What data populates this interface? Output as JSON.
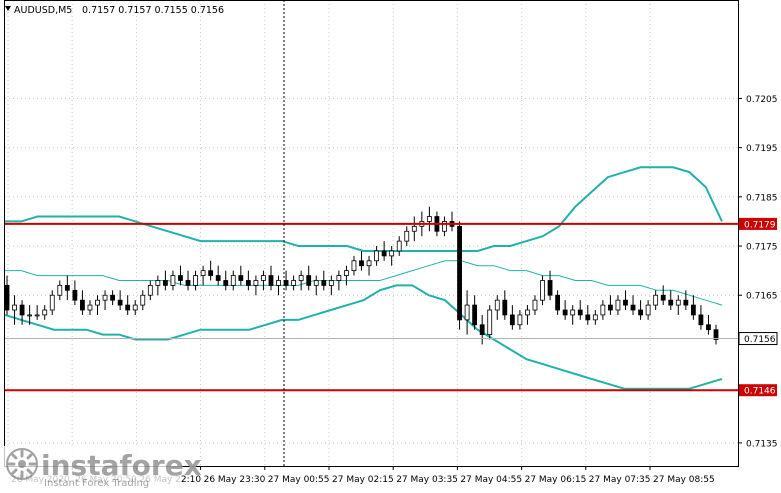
{
  "header": {
    "symbol": "AUDUSD,M5",
    "ohlc": "0.7157 0.7157 0.7155 0.7156"
  },
  "watermark": {
    "brand": "instaforex",
    "tagline": "Instant Forex Trading"
  },
  "colors": {
    "background": "#ffffff",
    "grid": "#c8c8c8",
    "candle": "#000000",
    "band": "#20b2aa",
    "level": "#cc0000",
    "axis": "#000000"
  },
  "chart_data": {
    "type": "candlestick",
    "title": "AUDUSD,M5",
    "ylim": [
      0.71303,
      0.7225
    ],
    "grid": true,
    "y_ticks": [
      "0.7205",
      "0.7195",
      "0.7185",
      "0.7175",
      "0.7165",
      "0.7135"
    ],
    "x_ticks": [
      "26 May 2020",
      "26 May 20:50",
      "26 May 22:10",
      "26 May 23:30",
      "27 May 00:55",
      "27 May 02:15",
      "27 May 03:35",
      "27 May 04:55",
      "27 May 06:15",
      "27 May 07:35",
      "27 May 08:55"
    ],
    "levels": [
      {
        "label": "0.7179",
        "value": 0.71795
      },
      {
        "label": "0.7146",
        "value": 0.71457
      }
    ],
    "current_price": {
      "label": "0.7156",
      "value": 0.71562
    },
    "candles": [
      [
        0.7167,
        0.7169,
        0.7161,
        0.7162
      ],
      [
        0.7162,
        0.7165,
        0.7159,
        0.7163
      ],
      [
        0.7163,
        0.7164,
        0.7159,
        0.7161
      ],
      [
        0.7161,
        0.7163,
        0.7159,
        0.7161
      ],
      [
        0.7161,
        0.7163,
        0.716,
        0.7161
      ],
      [
        0.7161,
        0.7163,
        0.716,
        0.7162
      ],
      [
        0.7162,
        0.7166,
        0.7161,
        0.7165
      ],
      [
        0.7165,
        0.7168,
        0.7164,
        0.7167
      ],
      [
        0.7167,
        0.7169,
        0.7164,
        0.7166
      ],
      [
        0.7166,
        0.7168,
        0.7163,
        0.7164
      ],
      [
        0.7164,
        0.7166,
        0.7161,
        0.7162
      ],
      [
        0.7162,
        0.7164,
        0.7161,
        0.7163
      ],
      [
        0.7163,
        0.7165,
        0.7161,
        0.7164
      ],
      [
        0.7164,
        0.7166,
        0.7162,
        0.7165
      ],
      [
        0.7165,
        0.7166,
        0.7163,
        0.7164
      ],
      [
        0.7164,
        0.7166,
        0.7162,
        0.7163
      ],
      [
        0.7163,
        0.7165,
        0.7161,
        0.7162
      ],
      [
        0.7162,
        0.7164,
        0.7161,
        0.7163
      ],
      [
        0.7163,
        0.7166,
        0.7162,
        0.7165
      ],
      [
        0.7165,
        0.7168,
        0.7164,
        0.7167
      ],
      [
        0.7167,
        0.7169,
        0.7165,
        0.7168
      ],
      [
        0.7168,
        0.717,
        0.7166,
        0.7167
      ],
      [
        0.7167,
        0.717,
        0.7166,
        0.7169
      ],
      [
        0.7169,
        0.7171,
        0.7167,
        0.7168
      ],
      [
        0.7168,
        0.717,
        0.7166,
        0.7167
      ],
      [
        0.7167,
        0.717,
        0.7166,
        0.7169
      ],
      [
        0.7169,
        0.7171,
        0.7167,
        0.717
      ],
      [
        0.717,
        0.7172,
        0.7168,
        0.7169
      ],
      [
        0.7169,
        0.7171,
        0.7167,
        0.7168
      ],
      [
        0.7168,
        0.717,
        0.7166,
        0.7167
      ],
      [
        0.7167,
        0.717,
        0.7166,
        0.7169
      ],
      [
        0.7169,
        0.7171,
        0.7167,
        0.7168
      ],
      [
        0.7168,
        0.717,
        0.7166,
        0.7167
      ],
      [
        0.7167,
        0.7169,
        0.7165,
        0.7168
      ],
      [
        0.7168,
        0.717,
        0.7166,
        0.7169
      ],
      [
        0.7169,
        0.7171,
        0.7166,
        0.7167
      ],
      [
        0.7167,
        0.7169,
        0.7165,
        0.7168
      ],
      [
        0.7168,
        0.717,
        0.7166,
        0.7167
      ],
      [
        0.7167,
        0.7169,
        0.7166,
        0.7168
      ],
      [
        0.7168,
        0.717,
        0.7166,
        0.7169
      ],
      [
        0.7169,
        0.7171,
        0.7166,
        0.7167
      ],
      [
        0.7167,
        0.7169,
        0.7165,
        0.7168
      ],
      [
        0.7168,
        0.717,
        0.7166,
        0.7167
      ],
      [
        0.7167,
        0.7169,
        0.7165,
        0.7168
      ],
      [
        0.7168,
        0.717,
        0.7166,
        0.7169
      ],
      [
        0.7169,
        0.7171,
        0.7167,
        0.717
      ],
      [
        0.717,
        0.7173,
        0.7169,
        0.7172
      ],
      [
        0.7172,
        0.7174,
        0.717,
        0.7171
      ],
      [
        0.7171,
        0.7173,
        0.7169,
        0.7172
      ],
      [
        0.7172,
        0.7175,
        0.7171,
        0.7174
      ],
      [
        0.7174,
        0.7176,
        0.7172,
        0.7173
      ],
      [
        0.7173,
        0.7175,
        0.7171,
        0.7174
      ],
      [
        0.7174,
        0.7177,
        0.7173,
        0.7176
      ],
      [
        0.7176,
        0.7179,
        0.7175,
        0.7178
      ],
      [
        0.7178,
        0.7181,
        0.7176,
        0.7179
      ],
      [
        0.7179,
        0.7182,
        0.7177,
        0.718
      ],
      [
        0.718,
        0.7183,
        0.7178,
        0.7181
      ],
      [
        0.7181,
        0.7182,
        0.7177,
        0.7178
      ],
      [
        0.7178,
        0.7181,
        0.7177,
        0.718
      ],
      [
        0.718,
        0.7182,
        0.7178,
        0.7179
      ],
      [
        0.7179,
        0.718,
        0.7158,
        0.716
      ],
      [
        0.716,
        0.7166,
        0.7157,
        0.7163
      ],
      [
        0.7163,
        0.7165,
        0.7158,
        0.7159
      ],
      [
        0.7159,
        0.7161,
        0.7155,
        0.7157
      ],
      [
        0.7157,
        0.7163,
        0.7156,
        0.7162
      ],
      [
        0.7162,
        0.7165,
        0.716,
        0.7164
      ],
      [
        0.7164,
        0.7166,
        0.716,
        0.7161
      ],
      [
        0.7161,
        0.7163,
        0.7158,
        0.7159
      ],
      [
        0.7159,
        0.7162,
        0.7158,
        0.7161
      ],
      [
        0.7161,
        0.7163,
        0.7159,
        0.7162
      ],
      [
        0.7162,
        0.7165,
        0.7161,
        0.7164
      ],
      [
        0.7164,
        0.7169,
        0.7163,
        0.7168
      ],
      [
        0.7168,
        0.717,
        0.7164,
        0.7165
      ],
      [
        0.7165,
        0.7166,
        0.7161,
        0.7162
      ],
      [
        0.7162,
        0.7164,
        0.716,
        0.7161
      ],
      [
        0.7161,
        0.7163,
        0.7159,
        0.7162
      ],
      [
        0.7162,
        0.7164,
        0.716,
        0.7161
      ],
      [
        0.7161,
        0.7163,
        0.7159,
        0.716
      ],
      [
        0.716,
        0.7162,
        0.7159,
        0.7161
      ],
      [
        0.7161,
        0.7164,
        0.716,
        0.7163
      ],
      [
        0.7163,
        0.7165,
        0.7161,
        0.7162
      ],
      [
        0.7162,
        0.7165,
        0.7161,
        0.7164
      ],
      [
        0.7164,
        0.7166,
        0.7162,
        0.7163
      ],
      [
        0.7163,
        0.7165,
        0.7161,
        0.7162
      ],
      [
        0.7162,
        0.7164,
        0.716,
        0.7161
      ],
      [
        0.7161,
        0.7164,
        0.716,
        0.7163
      ],
      [
        0.7163,
        0.7166,
        0.7162,
        0.7165
      ],
      [
        0.7165,
        0.7167,
        0.7163,
        0.7164
      ],
      [
        0.7164,
        0.7166,
        0.7162,
        0.7163
      ],
      [
        0.7163,
        0.7165,
        0.7161,
        0.7164
      ],
      [
        0.7164,
        0.7166,
        0.7162,
        0.7163
      ],
      [
        0.7163,
        0.7165,
        0.716,
        0.7161
      ],
      [
        0.7161,
        0.7163,
        0.7158,
        0.7159
      ],
      [
        0.7159,
        0.7161,
        0.7157,
        0.7158
      ],
      [
        0.7158,
        0.7159,
        0.7155,
        0.7156
      ]
    ],
    "upper_band": [
      0.718,
      0.718,
      0.7181,
      0.7181,
      0.7181,
      0.7181,
      0.7181,
      0.7181,
      0.718,
      0.7179,
      0.7178,
      0.7177,
      0.7176,
      0.7176,
      0.7176,
      0.7176,
      0.7176,
      0.7176,
      0.7175,
      0.7175,
      0.7175,
      0.7175,
      0.7174,
      0.7174,
      0.7174,
      0.7174,
      0.7174,
      0.7174,
      0.7174,
      0.7174,
      0.7175,
      0.7175,
      0.7176,
      0.7177,
      0.7179,
      0.7183,
      0.7186,
      0.7189,
      0.719,
      0.7191,
      0.7191,
      0.7191,
      0.719,
      0.7187,
      0.718
    ],
    "lower_band": [
      0.7161,
      0.716,
      0.7159,
      0.7158,
      0.7158,
      0.7158,
      0.7157,
      0.7157,
      0.7156,
      0.7156,
      0.7156,
      0.7157,
      0.7158,
      0.7158,
      0.7158,
      0.7158,
      0.7159,
      0.716,
      0.716,
      0.7161,
      0.7162,
      0.7163,
      0.7164,
      0.7166,
      0.7167,
      0.7167,
      0.7165,
      0.7164,
      0.7161,
      0.7158,
      0.7156,
      0.7154,
      0.7152,
      0.7151,
      0.715,
      0.7149,
      0.7148,
      0.7147,
      0.7146,
      0.7146,
      0.7146,
      0.7146,
      0.7146,
      0.7147,
      0.7148
    ],
    "middle_band": [
      0.717,
      0.717,
      0.7169,
      0.7169,
      0.7169,
      0.7169,
      0.7169,
      0.7168,
      0.7168,
      0.7168,
      0.7168,
      0.7167,
      0.7167,
      0.7167,
      0.7167,
      0.7167,
      0.7167,
      0.7167,
      0.7167,
      0.7168,
      0.7168,
      0.7168,
      0.7168,
      0.7168,
      0.7169,
      0.717,
      0.7171,
      0.7172,
      0.7172,
      0.7171,
      0.7171,
      0.717,
      0.717,
      0.7169,
      0.7169,
      0.7168,
      0.7168,
      0.7167,
      0.7167,
      0.7167,
      0.7166,
      0.7166,
      0.7165,
      0.7164,
      0.7163
    ]
  }
}
